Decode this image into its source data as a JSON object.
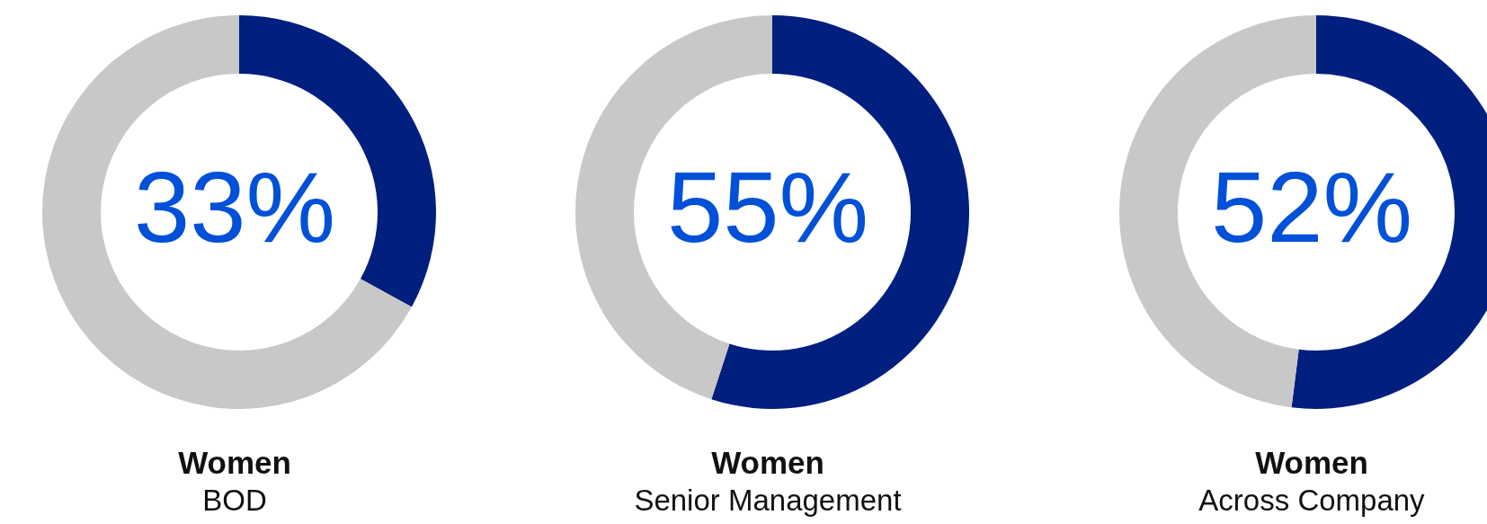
{
  "chart_data": [
    {
      "type": "donut",
      "title": "Women",
      "subtitle": "BOD",
      "categories": [
        null,
        null
      ],
      "values": [
        33,
        67
      ],
      "colors": [
        "#001f7f",
        "#c8c8c8"
      ],
      "annotations": [
        "33%"
      ]
    },
    {
      "type": "donut",
      "title": "Women",
      "subtitle": "Senior Management",
      "categories": [
        null,
        null
      ],
      "values": [
        55,
        45
      ],
      "colors": [
        "#001f7f",
        "#c8c8c8"
      ],
      "annotations": [
        "55%"
      ]
    },
    {
      "type": "donut",
      "title": "Women",
      "subtitle": "Across Company",
      "categories": [
        null,
        null
      ],
      "values": [
        52,
        48
      ],
      "colors": [
        "#001f7f",
        "#c8c8c8"
      ],
      "annotations": [
        "52%"
      ]
    }
  ]
}
